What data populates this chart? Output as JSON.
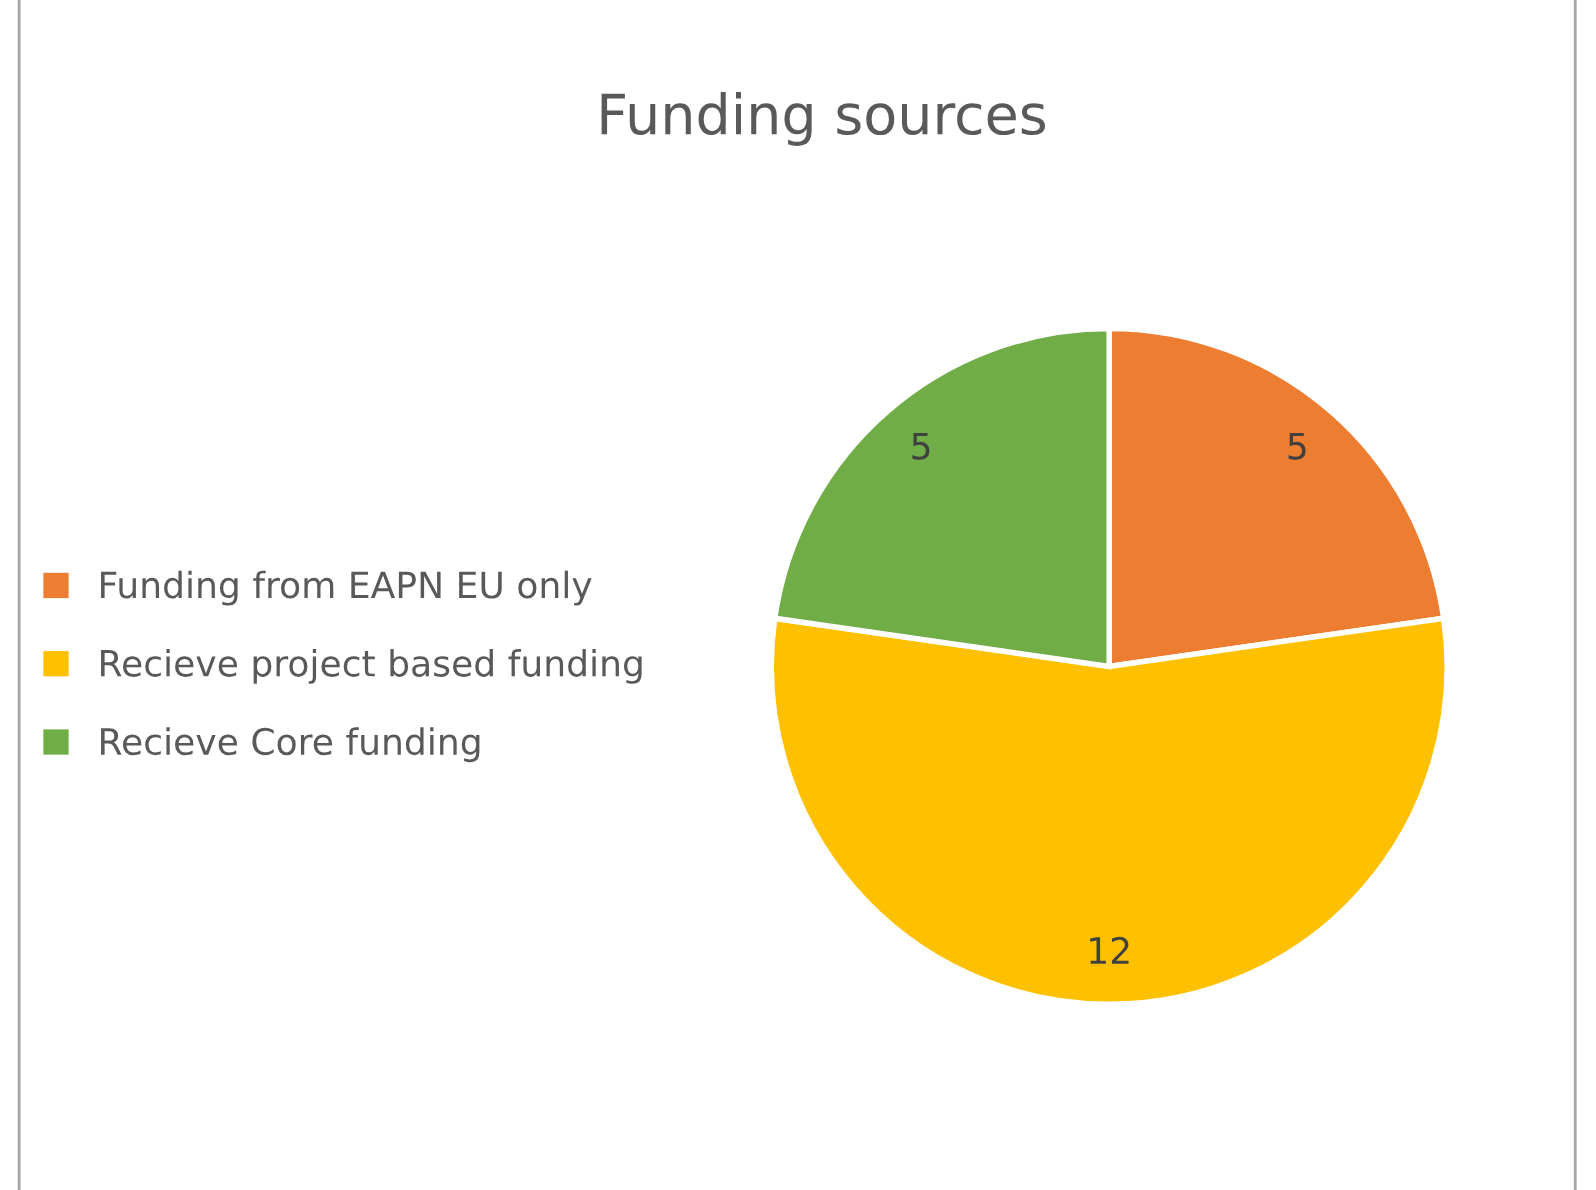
{
  "chart_data": {
    "type": "pie",
    "title": "Funding sources",
    "categories": [
      "Funding from EAPN EU only",
      "Recieve project based funding",
      "Recieve Core funding"
    ],
    "values": [
      5,
      12,
      5
    ],
    "colors": [
      "#ed7d31",
      "#ffc000",
      "#70ad47"
    ],
    "data_labels": true,
    "legend": "left"
  }
}
